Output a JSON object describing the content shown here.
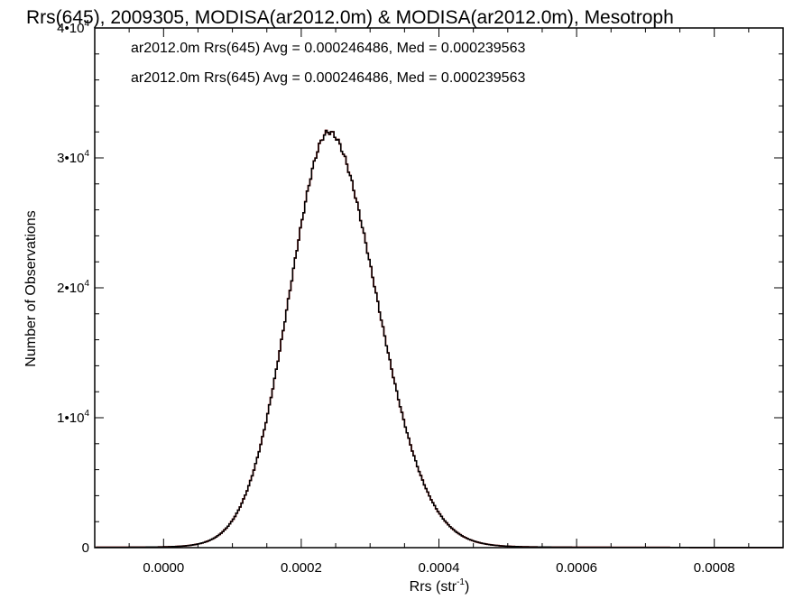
{
  "chart_data": {
    "type": "histogram",
    "title": "Rrs(645), 2009305, MODISA(ar2012.0m) & MODISA(ar2012.0m), Mesotroph",
    "xlabel_base": "Rrs (str",
    "xlabel_sup": "-1",
    "xlabel_close": ")",
    "ylabel": "Number of Observations",
    "xlim": [
      -0.0001,
      0.0009
    ],
    "ylim": [
      0,
      40000
    ],
    "x_ticks": [
      {
        "value": 0.0,
        "label": "0.0000"
      },
      {
        "value": 0.0002,
        "label": "0.0002"
      },
      {
        "value": 0.0004,
        "label": "0.0004"
      },
      {
        "value": 0.0006,
        "label": "0.0006"
      },
      {
        "value": 0.0008,
        "label": "0.0008"
      }
    ],
    "y_ticks": [
      {
        "value": 0,
        "base": "0",
        "sup": ""
      },
      {
        "value": 10000,
        "base": "1•10",
        "sup": "4"
      },
      {
        "value": 20000,
        "base": "2•10",
        "sup": "4"
      },
      {
        "value": 30000,
        "base": "3•10",
        "sup": "4"
      },
      {
        "value": 40000,
        "base": "4•10",
        "sup": "4"
      }
    ],
    "legend": [
      {
        "text": "ar2012.0m Rrs(645) Avg = 0.000246486, Med = 0.000239563",
        "color": "#000000"
      },
      {
        "text": "ar2012.0m Rrs(645) Avg = 0.000246486, Med = 0.000239563",
        "color": "#ff0000"
      }
    ],
    "series": [
      {
        "color": "#ff0000",
        "peak_x": 0.00024,
        "peak_y": 32000,
        "sigma_left": 6e-05,
        "sigma_right": 7.2e-05,
        "tail_left": 9e-05,
        "tail_right": 0.00011,
        "bin_width": 2.5e-06
      },
      {
        "color": "#000000",
        "peak_x": 0.00024,
        "peak_y": 32000,
        "sigma_left": 6e-05,
        "sigma_right": 7.2e-05,
        "tail_left": 9e-05,
        "tail_right": 0.00011,
        "bin_width": 2.5e-06
      }
    ]
  }
}
